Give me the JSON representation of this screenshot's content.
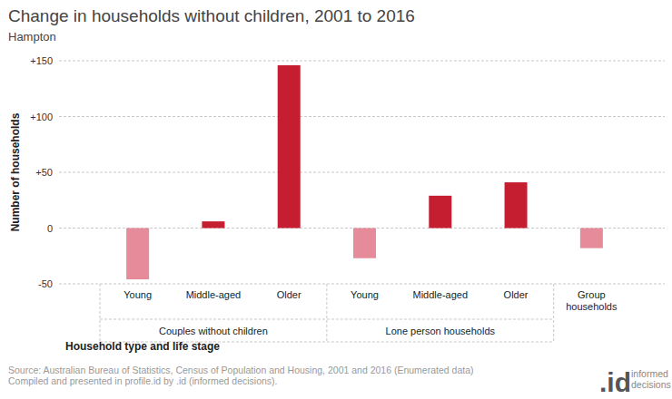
{
  "chart_data": {
    "type": "bar",
    "title": "Change in households without children, 2001 to 2016",
    "subtitle": "Hampton",
    "y_label": "Number of households",
    "x_label": "Household type and life stage",
    "categories": [
      "Young",
      "Middle-aged",
      "Older",
      "Young",
      "Middle-aged",
      "Older",
      "Group households"
    ],
    "groups": [
      {
        "name": "Couples without children",
        "count": 3
      },
      {
        "name": "Lone person households",
        "count": 3
      }
    ],
    "values": [
      -46,
      6,
      146,
      -27,
      29,
      41,
      -18
    ],
    "colors": [
      "#e58b99",
      "#c41e30",
      "#c41e30",
      "#e58b99",
      "#c41e30",
      "#c41e30",
      "#e58b99"
    ],
    "ylim": [
      -50,
      150
    ],
    "yticks": [
      -50,
      0,
      {
        "value": 50,
        "label": "+50"
      },
      {
        "value": 100,
        "label": "+100"
      },
      {
        "value": 150,
        "label": "+150"
      }
    ],
    "grid": true,
    "source": [
      "Source: Australian Bureau of Statistics, Census of Population and Housing, 2001 and 2016 (Enumerated data)",
      "Compiled and presented in profile.id by .id (informed decisions)."
    ],
    "logo": ".id",
    "logo_sub": "informed decisions"
  }
}
